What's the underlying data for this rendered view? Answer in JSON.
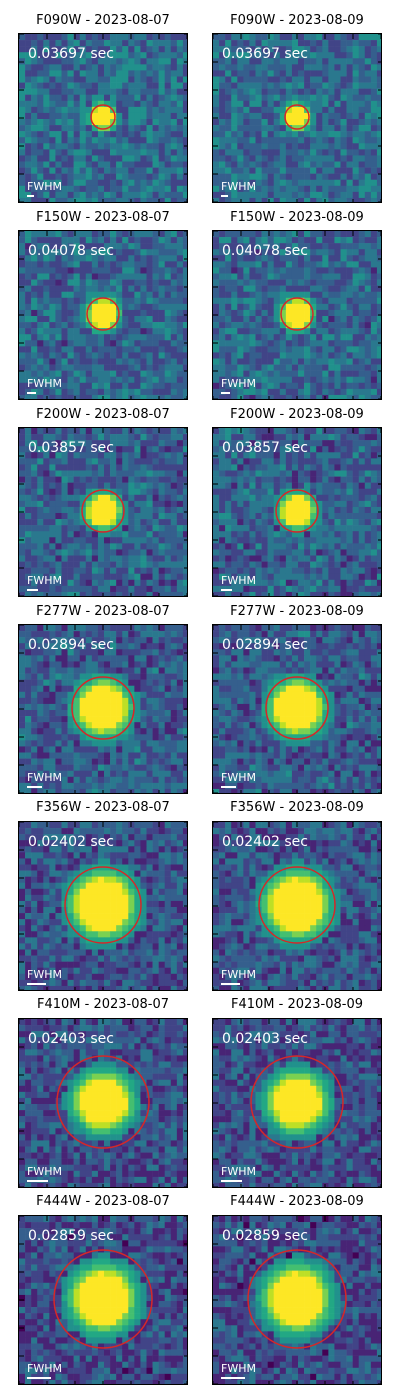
{
  "figure": {
    "columns": [
      "2023-08-07",
      "2023-08-09"
    ],
    "colormap": "viridis",
    "aperture_color": "#d62728",
    "scalebar_label": "FWHM",
    "rows": [
      {
        "filter": "F090W",
        "time": "0.03697 sec",
        "titles": [
          "F090W - 2023-08-07",
          "F090W - 2023-08-09"
        ]
      },
      {
        "filter": "F150W",
        "time": "0.04078 sec",
        "titles": [
          "F150W - 2023-08-07",
          "F150W - 2023-08-09"
        ]
      },
      {
        "filter": "F200W",
        "time": "0.03857 sec",
        "titles": [
          "F200W - 2023-08-07",
          "F200W - 2023-08-09"
        ]
      },
      {
        "filter": "F277W",
        "time": "0.02894 sec",
        "titles": [
          "F277W - 2023-08-07",
          "F277W - 2023-08-09"
        ]
      },
      {
        "filter": "F356W",
        "time": "0.02402 sec",
        "titles": [
          "F356W - 2023-08-07",
          "F356W - 2023-08-09"
        ]
      },
      {
        "filter": "F410M",
        "time": "0.02403 sec",
        "titles": [
          "F410M - 2023-08-07",
          "F410M - 2023-08-09"
        ]
      },
      {
        "filter": "F444W",
        "time": "0.02859 sec",
        "titles": [
          "F444W - 2023-08-07",
          "F444W - 2023-08-09"
        ]
      }
    ]
  }
}
